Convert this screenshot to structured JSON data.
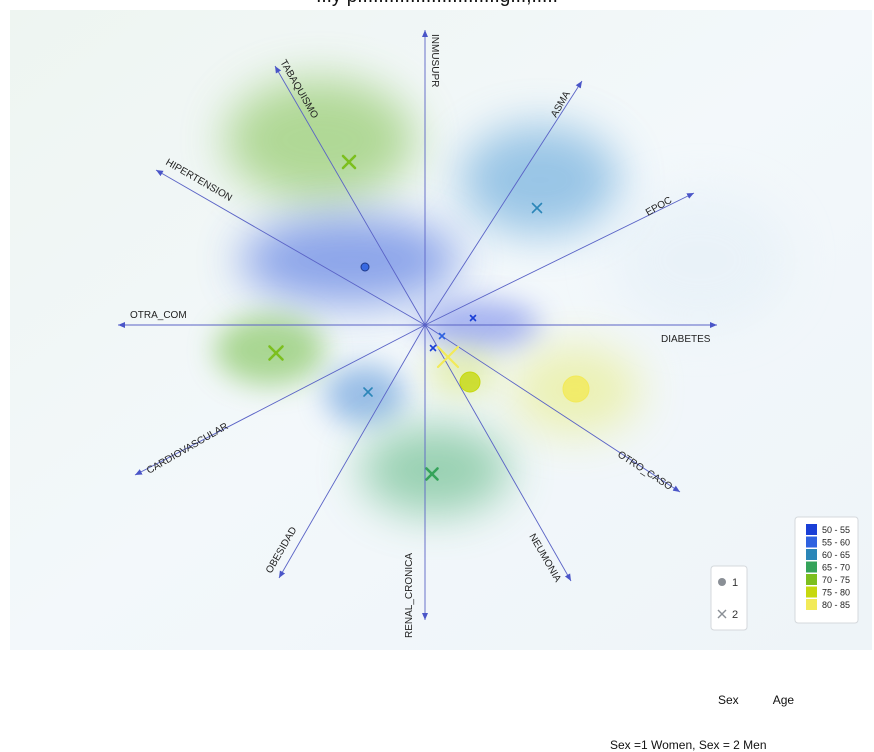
{
  "caption_top": "...y p...........................g...,.....",
  "chart_data": {
    "type": "scatter",
    "subtype": "biplot",
    "axes": [
      "INMUSUPR",
      "ASMA",
      "EPOC",
      "DIABETES",
      "OTRO_CASO",
      "NEUMONIA",
      "RENAL_CRONICA",
      "OBESIDAD",
      "CARDIOVASCULAR",
      "OTRA_COM",
      "HIPERTENSION",
      "TABAQUISMO"
    ],
    "points": [
      {
        "axis": "TABAQUISMO",
        "sex": 2,
        "age_range": "70 - 75"
      },
      {
        "axis": "EPOC",
        "sex": 2,
        "age_range": "60 - 65"
      },
      {
        "axis": "HIPERTENSION",
        "sex": 1,
        "age_range": "55 - 60"
      },
      {
        "axis": "DIABETES",
        "sex": 2,
        "age_range": "50 - 55"
      },
      {
        "axis": "DIABETES",
        "sex": 2,
        "age_range": "55 - 60"
      },
      {
        "axis": "RENAL_CRONICA",
        "sex": 2,
        "age_range": "50 - 55"
      },
      {
        "axis": "OTRO_CASO",
        "sex": 2,
        "age_range": "80 - 85"
      },
      {
        "axis": "NEUMONIA",
        "sex": 1,
        "age_range": "75 - 80"
      },
      {
        "axis": "OTRO_CASO",
        "sex": 1,
        "age_range": "80 - 85"
      },
      {
        "axis": "OTRA_COM",
        "sex": 2,
        "age_range": "70 - 75"
      },
      {
        "axis": "CARDIOVASCULAR",
        "sex": 2,
        "age_range": "60 - 65"
      },
      {
        "axis": "RENAL_CRONICA",
        "sex": 2,
        "age_range": "65 - 70"
      }
    ],
    "color_legend": [
      {
        "label": "50 - 55",
        "color": "#1a3fd6"
      },
      {
        "label": "55 - 60",
        "color": "#2f62e0"
      },
      {
        "label": "60 - 65",
        "color": "#2b86b8"
      },
      {
        "label": "65 - 70",
        "color": "#35a35a"
      },
      {
        "label": "70 - 75",
        "color": "#7cbf1e"
      },
      {
        "label": "75 - 80",
        "color": "#c6d80e"
      },
      {
        "label": "80 - 85",
        "color": "#f2ea58"
      }
    ],
    "shape_legend": [
      {
        "label": "1",
        "shape": "circle"
      },
      {
        "label": "2",
        "shape": "cross"
      }
    ]
  },
  "footer": {
    "sex_label": "Sex",
    "age_label": "Age",
    "note": "Sex =1 Women, Sex = 2 Men"
  }
}
